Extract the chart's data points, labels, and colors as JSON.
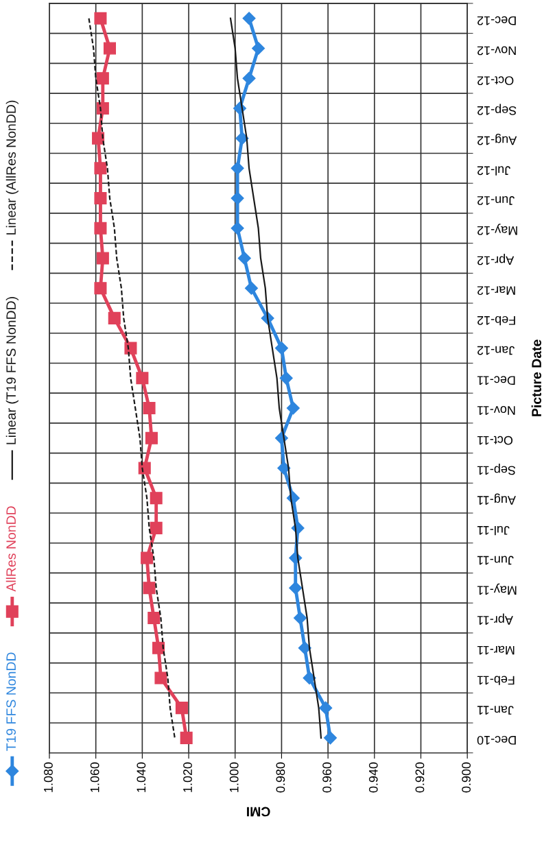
{
  "chart_data": {
    "type": "line",
    "orientation": "horizontal",
    "xlabel": "CMI",
    "ylabel": "Picture Date",
    "categories": [
      "Dec-12",
      "Nov-12",
      "Oct-12",
      "Sep-12",
      "Aug-12",
      "Jul-12",
      "Jun-12",
      "May-12",
      "Apr-12",
      "Mar-12",
      "Feb-12",
      "Jan-12",
      "Dec-11",
      "Nov-11",
      "Oct-11",
      "Sep-11",
      "Aug-11",
      "Jul-11",
      "Jun-11",
      "May-11",
      "Apr-11",
      "Mar-11",
      "Feb-11",
      "Jan-11",
      "Dec-10"
    ],
    "series": [
      {
        "name": "T19 FFS NonDD",
        "color": "#2e86de",
        "marker": "diamond",
        "line_style": "solid",
        "values": [
          0.994,
          0.99,
          0.994,
          0.998,
          0.997,
          0.999,
          0.999,
          0.999,
          0.996,
          0.993,
          0.986,
          0.98,
          0.978,
          0.975,
          0.98,
          0.979,
          0.975,
          0.973,
          0.974,
          0.974,
          0.972,
          0.97,
          0.968,
          0.961,
          0.959
        ]
      },
      {
        "name": "AllRes NonDD",
        "color": "#e0415a",
        "marker": "square",
        "line_style": "solid",
        "values": [
          1.058,
          1.054,
          1.057,
          1.057,
          1.059,
          1.058,
          1.058,
          1.058,
          1.057,
          1.058,
          1.052,
          1.045,
          1.04,
          1.037,
          1.036,
          1.039,
          1.034,
          1.034,
          1.038,
          1.037,
          1.035,
          1.033,
          1.032,
          1.023,
          1.021
        ]
      },
      {
        "name": "Linear (T19 FFS NonDD)",
        "color": "#1a1a1a",
        "marker": "none",
        "line_style": "solid",
        "values": [
          1.002,
          1.0,
          0.999,
          0.997,
          0.995,
          0.994,
          0.992,
          0.99,
          0.989,
          0.987,
          0.986,
          0.984,
          0.982,
          0.981,
          0.979,
          0.977,
          0.976,
          0.974,
          0.973,
          0.971,
          0.969,
          0.968,
          0.966,
          0.964,
          0.963
        ]
      },
      {
        "name": "Linear (AllRes NonDD)",
        "color": "#1a1a1a",
        "marker": "none",
        "line_style": "dashed",
        "values": [
          1.063,
          1.061,
          1.06,
          1.058,
          1.057,
          1.055,
          1.054,
          1.052,
          1.051,
          1.049,
          1.048,
          1.046,
          1.045,
          1.043,
          1.041,
          1.04,
          1.038,
          1.037,
          1.035,
          1.034,
          1.032,
          1.031,
          1.029,
          1.028,
          1.026
        ]
      }
    ],
    "xlim": [
      1.08,
      0.9
    ],
    "xticks": [
      {
        "value": 1.08,
        "label": "1.080"
      },
      {
        "value": 1.06,
        "label": "1.060"
      },
      {
        "value": 1.04,
        "label": "1.040"
      },
      {
        "value": 1.02,
        "label": "1.020"
      },
      {
        "value": 1.0,
        "label": "1.000"
      },
      {
        "value": 0.98,
        "label": "0.980"
      },
      {
        "value": 0.96,
        "label": "0.960"
      },
      {
        "value": 0.94,
        "label": "0.940"
      },
      {
        "value": 0.92,
        "label": "0.920"
      },
      {
        "value": 0.9,
        "label": "0.900"
      }
    ],
    "grid": true,
    "legend": "left"
  }
}
